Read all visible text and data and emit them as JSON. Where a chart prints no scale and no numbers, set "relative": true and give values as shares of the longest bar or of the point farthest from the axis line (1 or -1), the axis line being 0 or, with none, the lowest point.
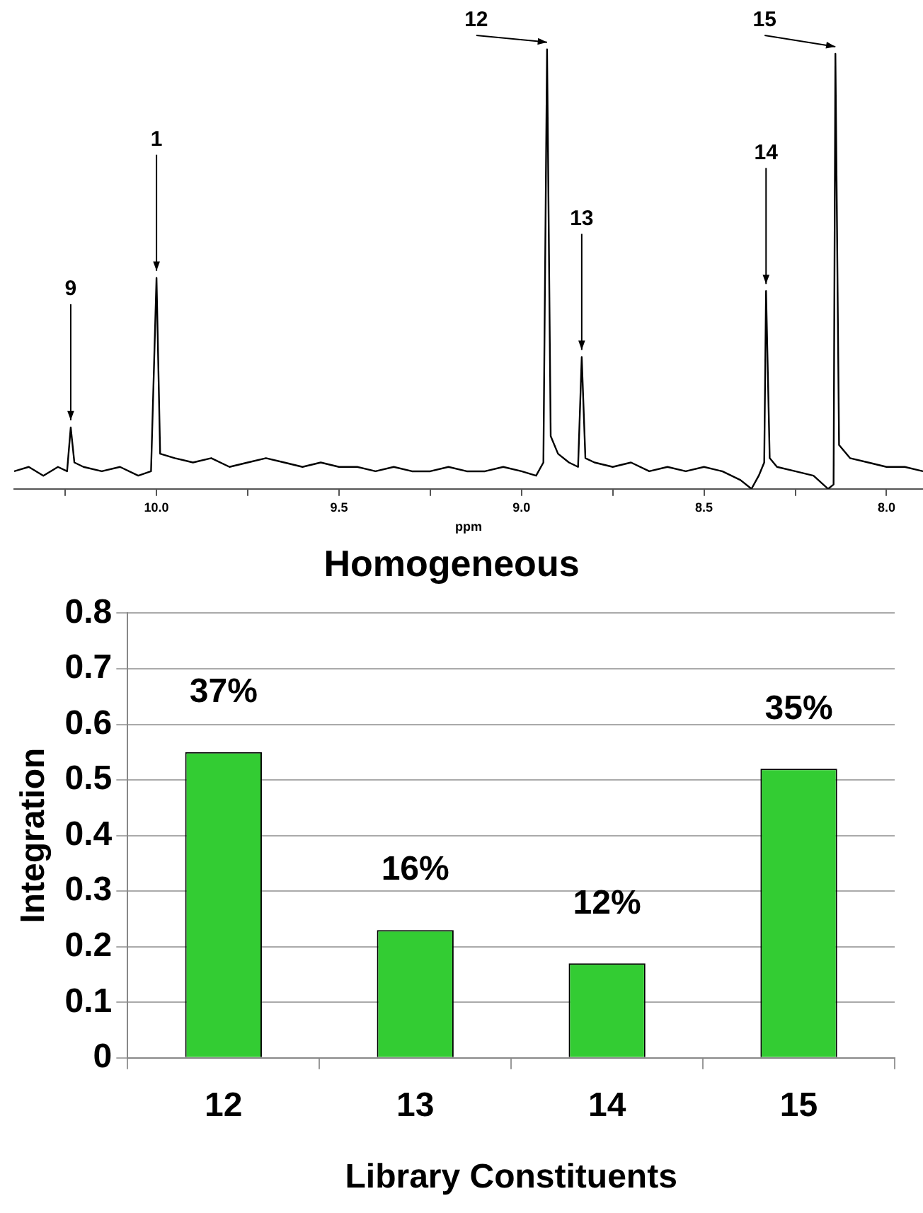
{
  "chart_data": [
    {
      "type": "line",
      "relative": true,
      "xlabel": "ppm",
      "tick_labels": "x",
      "grid": false,
      "legend": false,
      "marker": "none",
      "xlim": [
        10.39,
        7.9
      ],
      "xticks": [
        {
          "value": 10.25,
          "label": null
        },
        {
          "value": 10,
          "label": "10.0"
        },
        {
          "value": 9.75,
          "label": null
        },
        9.5,
        {
          "value": 9.25,
          "label": null
        },
        {
          "value": 9,
          "label": "9.0"
        },
        {
          "value": 8.75,
          "label": null
        },
        8.5,
        {
          "value": 8.25,
          "label": null
        },
        {
          "value": 8,
          "label": "8.0"
        }
      ],
      "series": [
        {
          "color": "#000000",
          "x": [
            10.39,
            10.35,
            10.31,
            10.27,
            10.245,
            10.235,
            10.225,
            10.2,
            10.15,
            10.1,
            10.05,
            10.015,
            10.0,
            9.99,
            9.95,
            9.9,
            9.85,
            9.8,
            9.75,
            9.7,
            9.65,
            9.6,
            9.55,
            9.5,
            9.45,
            9.4,
            9.35,
            9.3,
            9.25,
            9.2,
            9.15,
            9.1,
            9.05,
            9.0,
            8.96,
            8.94,
            8.93,
            8.92,
            8.9,
            8.87,
            8.845,
            8.835,
            8.825,
            8.8,
            8.75,
            8.7,
            8.65,
            8.6,
            8.55,
            8.5,
            8.45,
            8.4,
            8.37,
            8.35,
            8.335,
            8.33,
            8.32,
            8.3,
            8.25,
            8.2,
            8.16,
            8.145,
            8.14,
            8.13,
            8.1,
            8.05,
            8.0,
            7.95,
            7.9
          ],
          "values": [
            0.04,
            0.05,
            0.03,
            0.05,
            0.04,
            0.14,
            0.06,
            0.05,
            0.04,
            0.05,
            0.03,
            0.04,
            0.48,
            0.08,
            0.07,
            0.06,
            0.07,
            0.05,
            0.06,
            0.07,
            0.06,
            0.05,
            0.06,
            0.05,
            0.05,
            0.04,
            0.05,
            0.04,
            0.04,
            0.05,
            0.04,
            0.04,
            0.05,
            0.04,
            0.03,
            0.06,
            1,
            0.12,
            0.08,
            0.06,
            0.05,
            0.3,
            0.07,
            0.06,
            0.05,
            0.06,
            0.04,
            0.05,
            0.04,
            0.05,
            0.04,
            0.02,
            0.0,
            0.03,
            0.06,
            0.45,
            0.07,
            0.05,
            0.04,
            0.03,
            0.0,
            0.01,
            0.99,
            0.1,
            0.07,
            0.06,
            0.05,
            0.05,
            0.04
          ]
        }
      ],
      "annotations": [
        {
          "text": "9",
          "x": 10.235,
          "y": 0.14
        },
        {
          "text": "1",
          "x": 10.0,
          "y": 0.48
        },
        {
          "text": "12",
          "x": 8.93,
          "y": 1
        },
        {
          "text": "13",
          "x": 8.835,
          "y": 0.3
        },
        {
          "text": "14",
          "x": 8.33,
          "y": 0.45
        },
        {
          "text": "15",
          "x": 8.14,
          "y": 0.99
        }
      ]
    },
    {
      "type": "bar",
      "title": "Homogeneous",
      "xlabel": "Library Constituents",
      "ylabel": "Integration",
      "categories": [
        "12",
        "13",
        "14",
        "15"
      ],
      "values": [
        0.55,
        0.23,
        0.17,
        0.52
      ],
      "color": "#33cc33",
      "annotations": [
        {
          "text": "37%",
          "x": "12",
          "y": 0.55
        },
        {
          "text": "16%",
          "x": "13",
          "y": 0.23
        },
        {
          "text": "12%",
          "x": "14",
          "y": 0.17
        },
        {
          "text": "35%",
          "x": "15",
          "y": 0.52
        }
      ],
      "ylim": [
        0,
        0.8
      ],
      "yticks": [
        0,
        0.1,
        0.2,
        0.3,
        0.4,
        0.5,
        0.6,
        0.7,
        0.8
      ],
      "grid": "y",
      "legend": false
    }
  ]
}
